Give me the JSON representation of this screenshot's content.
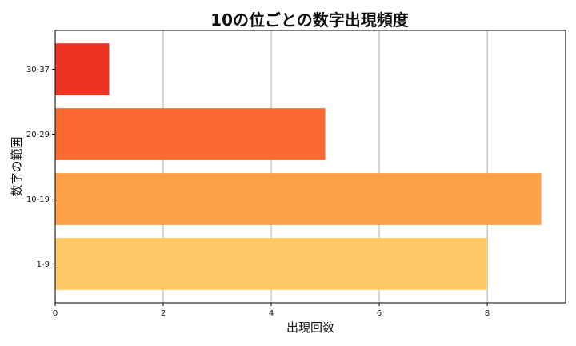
{
  "chart_data": {
    "type": "bar",
    "orientation": "horizontal",
    "title": "10の位ごとの数字出現頻度",
    "xlabel": "出現回数",
    "ylabel": "数字の範囲",
    "categories": [
      "1-9",
      "10-19",
      "20-29",
      "30-37"
    ],
    "values": [
      8,
      9,
      5,
      1
    ],
    "colors": [
      "#fdc968",
      "#fba247",
      "#fc6a33",
      "#f03224"
    ],
    "xlim": [
      0,
      9.45
    ],
    "xticks": [
      0,
      2,
      4,
      6,
      8
    ],
    "grid": "vertical",
    "legend": "none"
  }
}
